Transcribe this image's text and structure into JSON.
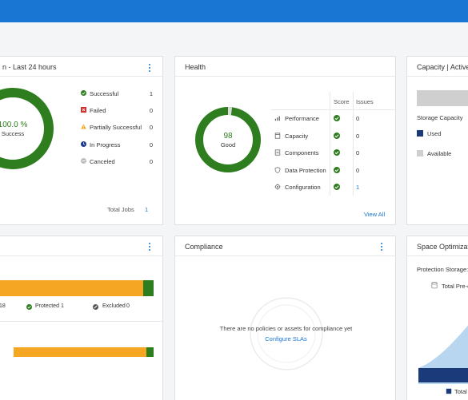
{
  "jobs": {
    "title": "n - Last 24 hours",
    "donut_percent": "100.0 %",
    "donut_label": "Success",
    "statuses": [
      {
        "label": "Successful",
        "value": "1",
        "icon": "success-check-icon",
        "color": "#2e7d1e"
      },
      {
        "label": "Failed",
        "value": "0",
        "icon": "failed-x-icon",
        "color": "#d32f2f"
      },
      {
        "label": "Partially Successful",
        "value": "0",
        "icon": "warning-triangle-icon",
        "color": "#f5a623"
      },
      {
        "label": "In Progress",
        "value": "0",
        "icon": "in-progress-icon",
        "color": "#1a3a8a"
      },
      {
        "label": "Canceled",
        "value": "0",
        "icon": "canceled-icon",
        "color": "#bdbdbd"
      }
    ],
    "total_label": "Total Jobs",
    "total_value": "1"
  },
  "health": {
    "title": "Health",
    "score": "98",
    "score_label": "Good",
    "col_score": "Score",
    "col_issues": "Issues",
    "rows": [
      {
        "label": "Performance",
        "icon": "performance-chart-icon",
        "issues": "0"
      },
      {
        "label": "Capacity",
        "icon": "capacity-icon",
        "issues": "0"
      },
      {
        "label": "Components",
        "icon": "components-icon",
        "issues": "0"
      },
      {
        "label": "Data Protection",
        "icon": "shield-icon",
        "issues": "0"
      },
      {
        "label": "Configuration",
        "icon": "gear-icon",
        "issues": "1"
      }
    ],
    "view_all": "View All"
  },
  "capacity": {
    "title": "Capacity | Active",
    "storage_label": "Storage Capacity",
    "used_label": "Used",
    "available_label": "Available",
    "used_color": "#1a3a7a",
    "available_color": "#cfcfcf"
  },
  "protection": {
    "legend_count_left": "18",
    "protected_label": "Protected",
    "protected_value": "1",
    "excluded_label": "Excluded",
    "excluded_value": "0",
    "bar_color": "#f5a623",
    "protected_color": "#2e7d1e"
  },
  "compliance": {
    "title": "Compliance",
    "empty_text": "There are no policies or assets for compliance yet",
    "configure_link": "Configure SLAs"
  },
  "space": {
    "title": "Space Optimizatio",
    "protection_storage_label": "Protection Storage:",
    "total_pre_label": "Total Pre-c",
    "total_label": "Total"
  },
  "colors": {
    "accent": "#1976d2",
    "success": "#2e7d1e",
    "warning": "#f5a623"
  }
}
